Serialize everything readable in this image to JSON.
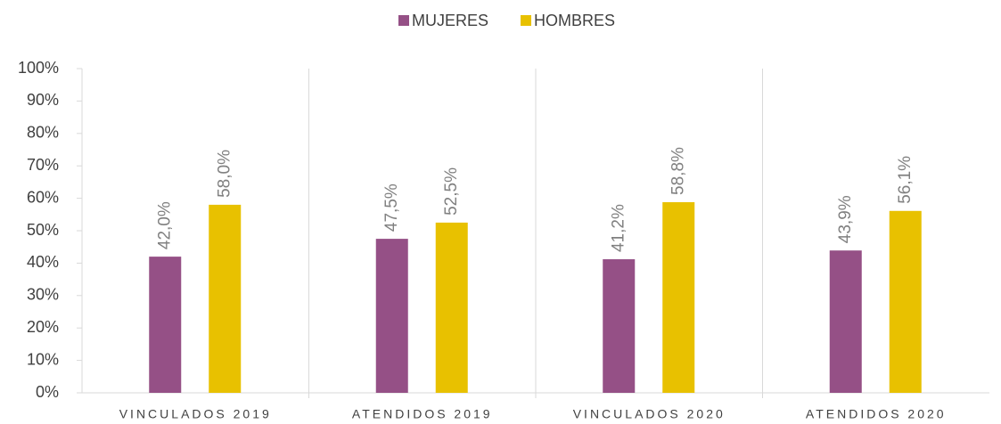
{
  "chart_data": {
    "type": "bar",
    "categories": [
      "VINCULADOS 2019",
      "ATENDIDOS 2019",
      "VINCULADOS 2020",
      "ATENDIDOS 2020"
    ],
    "series": [
      {
        "name": "MUJERES",
        "color": "#955086",
        "values": [
          42.0,
          47.5,
          41.2,
          43.9
        ],
        "value_labels": [
          "42,0%",
          "47,5%",
          "41,2%",
          "43,9%"
        ]
      },
      {
        "name": "HOMBRES",
        "color": "#E8C100",
        "values": [
          58.0,
          52.5,
          58.8,
          56.1
        ],
        "value_labels": [
          "58,0%",
          "52,5%",
          "58,8%",
          "56,1%"
        ]
      }
    ],
    "ylim": [
      0,
      100
    ],
    "yticks": [
      {
        "value": 0,
        "label": "0%"
      },
      {
        "value": 10,
        "label": "10%"
      },
      {
        "value": 20,
        "label": "20%"
      },
      {
        "value": 30,
        "label": "30%"
      },
      {
        "value": 40,
        "label": "40%"
      },
      {
        "value": 50,
        "label": "50%"
      },
      {
        "value": 60,
        "label": "60%"
      },
      {
        "value": 70,
        "label": "70%"
      },
      {
        "value": 80,
        "label": "80%"
      },
      {
        "value": 90,
        "label": "90%"
      },
      {
        "value": 100,
        "label": "100%"
      }
    ],
    "legend": "top"
  }
}
